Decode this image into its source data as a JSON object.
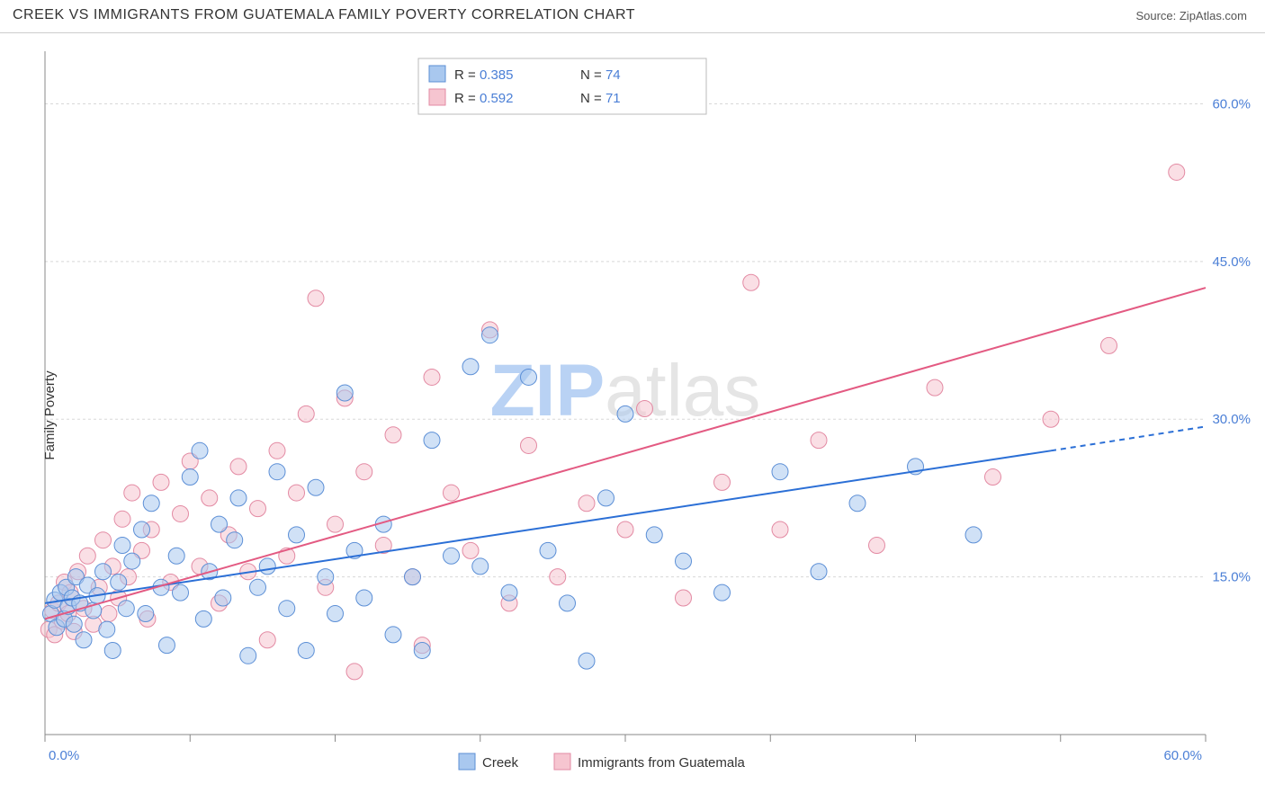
{
  "header": {
    "title": "CREEK VS IMMIGRANTS FROM GUATEMALA FAMILY POVERTY CORRELATION CHART",
    "source_label": "Source: ",
    "source_name": "ZipAtlas.com"
  },
  "chart": {
    "type": "scatter",
    "ylabel": "Family Poverty",
    "watermark_a": "ZIP",
    "watermark_b": "atlas",
    "xlim": [
      0,
      60
    ],
    "ylim": [
      0,
      65
    ],
    "x_ticks": [
      0,
      7.5,
      15,
      22.5,
      30,
      37.5,
      45,
      52.5,
      60
    ],
    "x_tick_labels": {
      "0": "0.0%",
      "60": "60.0%"
    },
    "y_ticks": [
      15,
      30,
      45,
      60
    ],
    "y_tick_labels": {
      "15": "15.0%",
      "30": "30.0%",
      "45": "45.0%",
      "60": "60.0%"
    },
    "background_color": "#ffffff",
    "grid_color": "#d8d8d8",
    "axis_color": "#888888",
    "tick_label_color": "#4b7fd6",
    "marker_radius": 9,
    "marker_opacity": 0.55,
    "series": [
      {
        "name": "Creek",
        "color_fill": "#a9c8ef",
        "color_stroke": "#5c8fd6",
        "R": 0.385,
        "N": 74,
        "trend": {
          "x1": 0,
          "y1": 12.5,
          "x2": 52,
          "y2": 27.0,
          "dash_x2": 60,
          "dash_y2": 29.3,
          "color": "#2b6fd6",
          "width": 2
        },
        "points": [
          [
            0.3,
            11.5
          ],
          [
            0.5,
            12.8
          ],
          [
            0.6,
            10.2
          ],
          [
            0.8,
            13.5
          ],
          [
            1.0,
            11.0
          ],
          [
            1.1,
            14.0
          ],
          [
            1.2,
            12.2
          ],
          [
            1.4,
            13.0
          ],
          [
            1.5,
            10.5
          ],
          [
            1.6,
            15.0
          ],
          [
            1.8,
            12.5
          ],
          [
            2.0,
            9.0
          ],
          [
            2.2,
            14.2
          ],
          [
            2.5,
            11.8
          ],
          [
            2.7,
            13.2
          ],
          [
            3.0,
            15.5
          ],
          [
            3.2,
            10.0
          ],
          [
            3.5,
            8.0
          ],
          [
            3.8,
            14.5
          ],
          [
            4.0,
            18.0
          ],
          [
            4.2,
            12.0
          ],
          [
            4.5,
            16.5
          ],
          [
            5.0,
            19.5
          ],
          [
            5.2,
            11.5
          ],
          [
            5.5,
            22.0
          ],
          [
            6.0,
            14.0
          ],
          [
            6.3,
            8.5
          ],
          [
            6.8,
            17.0
          ],
          [
            7.0,
            13.5
          ],
          [
            7.5,
            24.5
          ],
          [
            8.0,
            27.0
          ],
          [
            8.2,
            11.0
          ],
          [
            8.5,
            15.5
          ],
          [
            9.0,
            20.0
          ],
          [
            9.2,
            13.0
          ],
          [
            9.8,
            18.5
          ],
          [
            10.0,
            22.5
          ],
          [
            10.5,
            7.5
          ],
          [
            11.0,
            14.0
          ],
          [
            11.5,
            16.0
          ],
          [
            12.0,
            25.0
          ],
          [
            12.5,
            12.0
          ],
          [
            13.0,
            19.0
          ],
          [
            13.5,
            8.0
          ],
          [
            14.0,
            23.5
          ],
          [
            14.5,
            15.0
          ],
          [
            15.0,
            11.5
          ],
          [
            15.5,
            32.5
          ],
          [
            16.0,
            17.5
          ],
          [
            16.5,
            13.0
          ],
          [
            17.5,
            20.0
          ],
          [
            18.0,
            9.5
          ],
          [
            19.0,
            15.0
          ],
          [
            19.5,
            8.0
          ],
          [
            20.0,
            28.0
          ],
          [
            21.0,
            17.0
          ],
          [
            22.0,
            35.0
          ],
          [
            22.5,
            16.0
          ],
          [
            24.0,
            13.5
          ],
          [
            25.0,
            34.0
          ],
          [
            26.0,
            17.5
          ],
          [
            28.0,
            7.0
          ],
          [
            29.0,
            22.5
          ],
          [
            30.0,
            30.5
          ],
          [
            31.5,
            19.0
          ],
          [
            33.0,
            16.5
          ],
          [
            35.0,
            13.5
          ],
          [
            38.0,
            25.0
          ],
          [
            40.0,
            15.5
          ],
          [
            42.0,
            22.0
          ],
          [
            45.0,
            25.5
          ],
          [
            48.0,
            19.0
          ],
          [
            23.0,
            38.0
          ],
          [
            27.0,
            12.5
          ]
        ]
      },
      {
        "name": "Immigrants from Guatemala",
        "color_fill": "#f6c5d0",
        "color_stroke": "#e38aa3",
        "R": 0.592,
        "N": 71,
        "trend": {
          "x1": 0,
          "y1": 11.0,
          "x2": 60,
          "y2": 42.5,
          "color": "#e35a82",
          "width": 2
        },
        "points": [
          [
            0.2,
            10.0
          ],
          [
            0.4,
            11.8
          ],
          [
            0.5,
            9.5
          ],
          [
            0.7,
            12.5
          ],
          [
            0.9,
            10.8
          ],
          [
            1.0,
            14.5
          ],
          [
            1.2,
            11.5
          ],
          [
            1.3,
            13.5
          ],
          [
            1.5,
            9.8
          ],
          [
            1.7,
            15.5
          ],
          [
            2.0,
            12.0
          ],
          [
            2.2,
            17.0
          ],
          [
            2.5,
            10.5
          ],
          [
            2.8,
            14.0
          ],
          [
            3.0,
            18.5
          ],
          [
            3.3,
            11.5
          ],
          [
            3.5,
            16.0
          ],
          [
            3.8,
            13.0
          ],
          [
            4.0,
            20.5
          ],
          [
            4.3,
            15.0
          ],
          [
            4.5,
            23.0
          ],
          [
            5.0,
            17.5
          ],
          [
            5.3,
            11.0
          ],
          [
            5.5,
            19.5
          ],
          [
            6.0,
            24.0
          ],
          [
            6.5,
            14.5
          ],
          [
            7.0,
            21.0
          ],
          [
            7.5,
            26.0
          ],
          [
            8.0,
            16.0
          ],
          [
            8.5,
            22.5
          ],
          [
            9.0,
            12.5
          ],
          [
            9.5,
            19.0
          ],
          [
            10.0,
            25.5
          ],
          [
            10.5,
            15.5
          ],
          [
            11.0,
            21.5
          ],
          [
            11.5,
            9.0
          ],
          [
            12.0,
            27.0
          ],
          [
            12.5,
            17.0
          ],
          [
            13.0,
            23.0
          ],
          [
            14.0,
            41.5
          ],
          [
            14.5,
            14.0
          ],
          [
            15.0,
            20.0
          ],
          [
            15.5,
            32.0
          ],
          [
            16.0,
            6.0
          ],
          [
            16.5,
            25.0
          ],
          [
            17.5,
            18.0
          ],
          [
            18.0,
            28.5
          ],
          [
            19.0,
            15.0
          ],
          [
            19.5,
            8.5
          ],
          [
            21.0,
            23.0
          ],
          [
            22.0,
            17.5
          ],
          [
            23.0,
            38.5
          ],
          [
            24.0,
            12.5
          ],
          [
            25.0,
            27.5
          ],
          [
            26.5,
            15.0
          ],
          [
            28.0,
            22.0
          ],
          [
            30.0,
            19.5
          ],
          [
            31.0,
            31.0
          ],
          [
            33.0,
            13.0
          ],
          [
            35.0,
            24.0
          ],
          [
            36.5,
            43.0
          ],
          [
            38.0,
            19.5
          ],
          [
            40.0,
            28.0
          ],
          [
            43.0,
            18.0
          ],
          [
            46.0,
            33.0
          ],
          [
            49.0,
            24.5
          ],
          [
            52.0,
            30.0
          ],
          [
            55.0,
            37.0
          ],
          [
            58.5,
            53.5
          ],
          [
            20.0,
            34.0
          ],
          [
            13.5,
            30.5
          ]
        ]
      }
    ],
    "legend_top": {
      "R_label": "R = ",
      "N_label": "N = "
    },
    "legend_bottom": {
      "items": [
        "Creek",
        "Immigrants from Guatemala"
      ]
    }
  }
}
